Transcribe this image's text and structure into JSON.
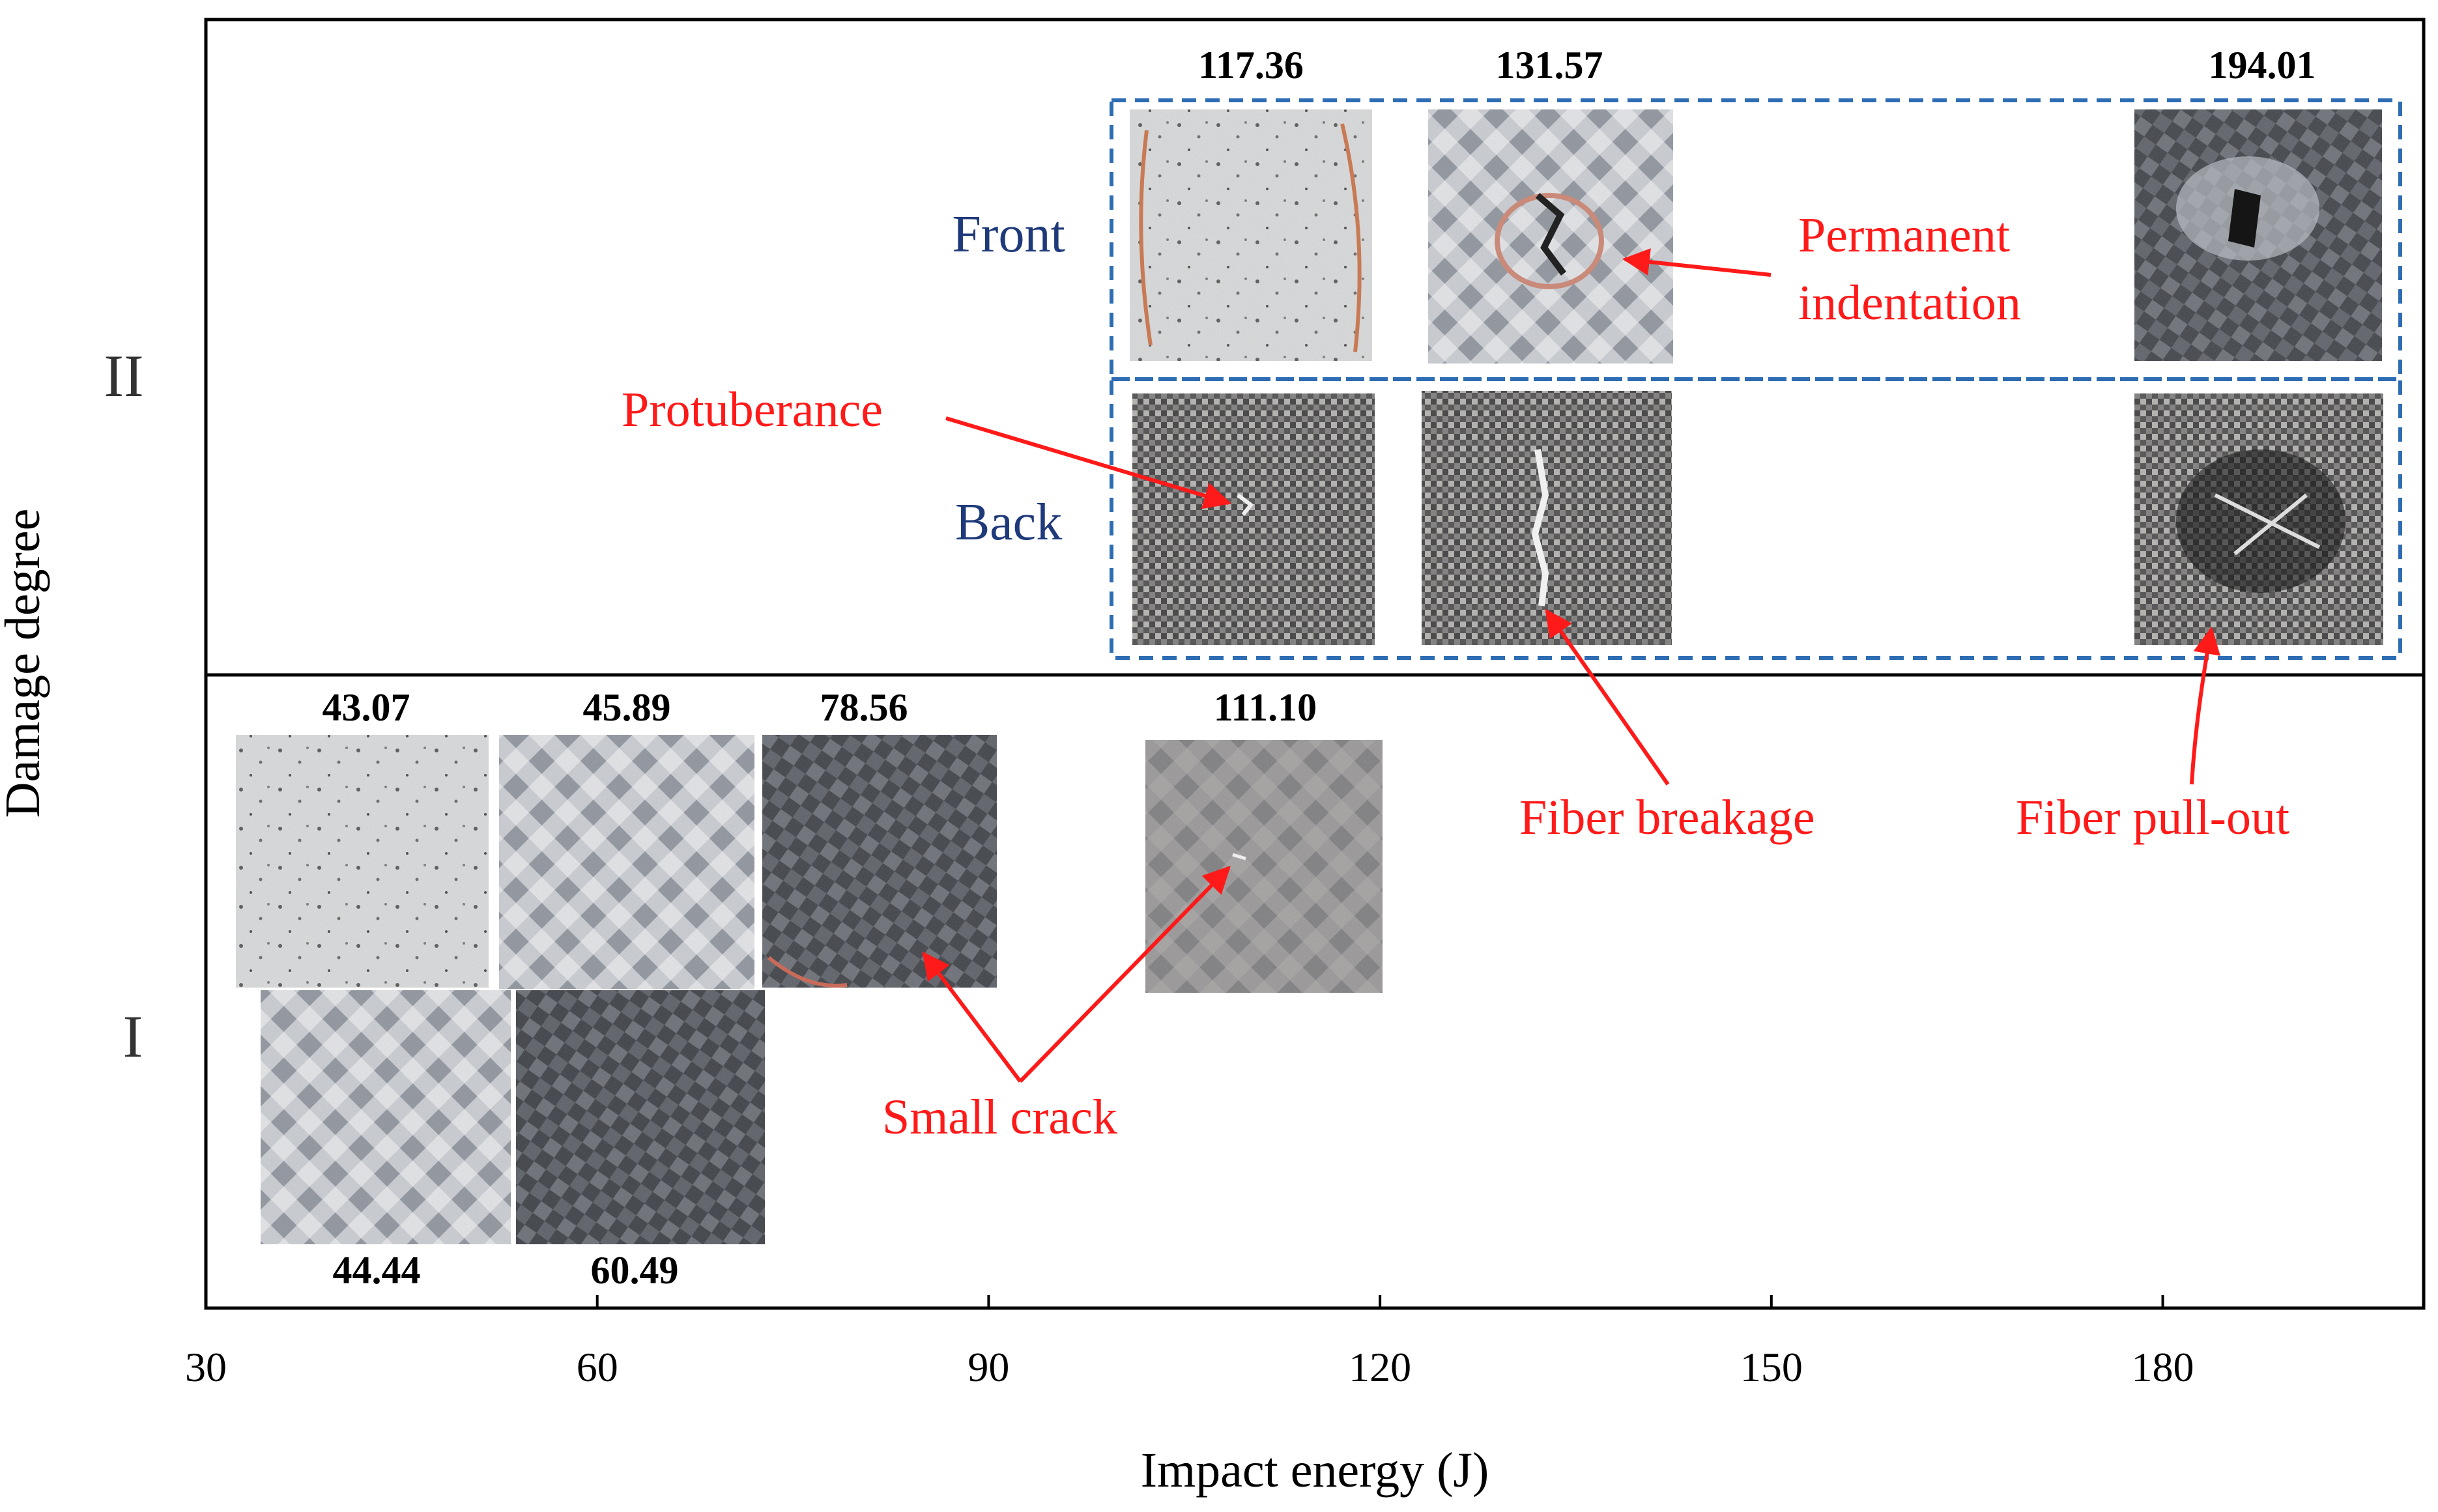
{
  "chart_data": {
    "type": "scatter",
    "title": "",
    "xlabel": "Impact energy (J)",
    "ylabel": "Damage degree",
    "xlim": [
      30,
      200
    ],
    "x_ticks": [
      30,
      60,
      90,
      120,
      150,
      180
    ],
    "y_categories": [
      "I",
      "II"
    ],
    "levels": [
      {
        "name": "I",
        "samples": [
          {
            "energy": 43.07,
            "label": "43.07"
          },
          {
            "energy": 44.44,
            "label": "44.44"
          },
          {
            "energy": 45.89,
            "label": "45.89"
          },
          {
            "energy": 60.49,
            "label": "60.49"
          },
          {
            "energy": 78.56,
            "label": "78.56"
          },
          {
            "energy": 111.1,
            "label": "111.10"
          }
        ]
      },
      {
        "name": "II",
        "sides": [
          "Front",
          "Back"
        ],
        "samples": [
          {
            "energy": 117.36,
            "label": "117.36"
          },
          {
            "energy": 131.57,
            "label": "131.57"
          },
          {
            "energy": 194.01,
            "label": "194.01"
          }
        ]
      }
    ],
    "annotations": {
      "permanent_indentation": [
        "Permanent",
        "indentation"
      ],
      "protuberance": "Protuberance",
      "fiber_breakage": "Fiber breakage",
      "fiber_pullout": "Fiber pull-out",
      "small_crack": "Small crack"
    }
  },
  "colors": {
    "annotation": "#ff1a1a",
    "side_label": "#1f3a7a",
    "dashed_box": "#2e6db4",
    "axis": "#000000"
  }
}
